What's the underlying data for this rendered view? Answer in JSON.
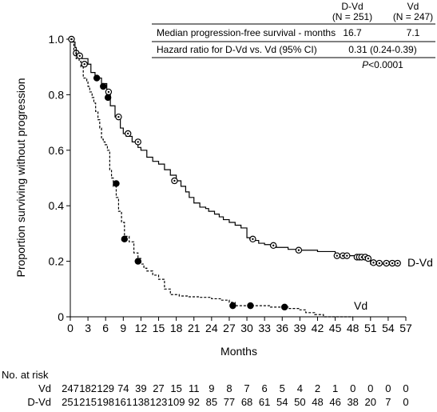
{
  "chart_data": {
    "type": "line",
    "xlabel": "Months",
    "ylabel": "Proportion surviving without progression",
    "xlim": [
      0,
      57
    ],
    "ylim": [
      0,
      1.0
    ],
    "x_ticks": [
      "0",
      "3",
      "6",
      "9",
      "12",
      "15",
      "18",
      "21",
      "24",
      "27",
      "30",
      "33",
      "36",
      "39",
      "42",
      "45",
      "48",
      "51",
      "54",
      "57"
    ],
    "y_ticks": [
      "0",
      "0.2",
      "0.4",
      "0.6",
      "0.8",
      "1.0"
    ],
    "grid": false,
    "series": [
      {
        "name": "D-Vd",
        "line_style": "solid",
        "marker": "open-circle",
        "end_label": "D-Vd",
        "points": [
          [
            0,
            1.0
          ],
          [
            0.4,
            0.99
          ],
          [
            0.8,
            0.97
          ],
          [
            1,
            0.95
          ],
          [
            1.5,
            0.94
          ],
          [
            2,
            0.93
          ],
          [
            3,
            0.91
          ],
          [
            3.5,
            0.88
          ],
          [
            4.2,
            0.87
          ],
          [
            4.6,
            0.86
          ],
          [
            5.3,
            0.84
          ],
          [
            6.2,
            0.81
          ],
          [
            6.8,
            0.76
          ],
          [
            7.6,
            0.72
          ],
          [
            8.5,
            0.68
          ],
          [
            9,
            0.66
          ],
          [
            9.5,
            0.65
          ],
          [
            10.5,
            0.63
          ],
          [
            11.5,
            0.61
          ],
          [
            12,
            0.6
          ],
          [
            13,
            0.575
          ],
          [
            14,
            0.56
          ],
          [
            15,
            0.55
          ],
          [
            16,
            0.53
          ],
          [
            17,
            0.51
          ],
          [
            18,
            0.49
          ],
          [
            18.8,
            0.47
          ],
          [
            19.6,
            0.45
          ],
          [
            20.2,
            0.43
          ],
          [
            21,
            0.41
          ],
          [
            22,
            0.395
          ],
          [
            23,
            0.39
          ],
          [
            23.5,
            0.38
          ],
          [
            24.5,
            0.37
          ],
          [
            25.3,
            0.36
          ],
          [
            26,
            0.35
          ],
          [
            27,
            0.34
          ],
          [
            28,
            0.33
          ],
          [
            29,
            0.32
          ],
          [
            30,
            0.285
          ],
          [
            30.5,
            0.28
          ],
          [
            31,
            0.275
          ],
          [
            32,
            0.265
          ],
          [
            33,
            0.26
          ],
          [
            34,
            0.255
          ],
          [
            35,
            0.25
          ],
          [
            37,
            0.243
          ],
          [
            38.5,
            0.24
          ],
          [
            42,
            0.235
          ],
          [
            45,
            0.225
          ],
          [
            47,
            0.22
          ],
          [
            49,
            0.21
          ],
          [
            50,
            0.205
          ],
          [
            51,
            0.19
          ],
          [
            54,
            0.19
          ],
          [
            55.5,
            0.19
          ]
        ],
        "censored": [
          [
            0.2,
            1.0
          ],
          [
            1,
            0.95
          ],
          [
            1.6,
            0.94
          ],
          [
            2.4,
            0.91
          ],
          [
            6.5,
            0.81
          ],
          [
            8.2,
            0.72
          ],
          [
            9.8,
            0.66
          ],
          [
            11.5,
            0.63
          ],
          [
            17.7,
            0.49
          ],
          [
            31,
            0.28
          ],
          [
            34.5,
            0.257
          ],
          [
            38.8,
            0.24
          ],
          [
            45.3,
            0.22
          ],
          [
            46.3,
            0.22
          ],
          [
            47,
            0.22
          ],
          [
            48.7,
            0.215
          ],
          [
            49.1,
            0.215
          ],
          [
            49.5,
            0.215
          ],
          [
            50.1,
            0.215
          ],
          [
            50.6,
            0.21
          ],
          [
            51.5,
            0.195
          ],
          [
            52.5,
            0.193
          ],
          [
            53.7,
            0.193
          ],
          [
            54.7,
            0.193
          ],
          [
            55.6,
            0.193
          ]
        ]
      },
      {
        "name": "Vd",
        "line_style": "dashed",
        "marker": "filled-circle",
        "end_label": "Vd",
        "points": [
          [
            0,
            1.0
          ],
          [
            0.3,
            0.99
          ],
          [
            0.6,
            0.96
          ],
          [
            1,
            0.93
          ],
          [
            1.5,
            0.92
          ],
          [
            1.8,
            0.9
          ],
          [
            2.2,
            0.86
          ],
          [
            2.8,
            0.85
          ],
          [
            3,
            0.83
          ],
          [
            3.3,
            0.81
          ],
          [
            3.7,
            0.79
          ],
          [
            4,
            0.77
          ],
          [
            4.3,
            0.74
          ],
          [
            4.7,
            0.71
          ],
          [
            5,
            0.68
          ],
          [
            5.3,
            0.64
          ],
          [
            5.6,
            0.63
          ],
          [
            5.9,
            0.62
          ],
          [
            6.3,
            0.6
          ],
          [
            6.7,
            0.53
          ],
          [
            7,
            0.5
          ],
          [
            7.3,
            0.47
          ],
          [
            7.8,
            0.43
          ],
          [
            8.2,
            0.38
          ],
          [
            8.7,
            0.34
          ],
          [
            9.2,
            0.29
          ],
          [
            10,
            0.27
          ],
          [
            10.8,
            0.23
          ],
          [
            11.5,
            0.21
          ],
          [
            12,
            0.19
          ],
          [
            12.5,
            0.175
          ],
          [
            13,
            0.165
          ],
          [
            14,
            0.15
          ],
          [
            15,
            0.135
          ],
          [
            16,
            0.1
          ],
          [
            17,
            0.08
          ],
          [
            18.5,
            0.075
          ],
          [
            20,
            0.072
          ],
          [
            22,
            0.07
          ],
          [
            24,
            0.065
          ],
          [
            25.5,
            0.06
          ],
          [
            27,
            0.052
          ],
          [
            28,
            0.04
          ],
          [
            31,
            0.04
          ],
          [
            34,
            0.035
          ],
          [
            37,
            0.03
          ],
          [
            39,
            0.025
          ],
          [
            40,
            0.015
          ],
          [
            41.5,
            0.008
          ],
          [
            43,
            0.0
          ],
          [
            48,
            0.0
          ]
        ],
        "censored": [
          [
            4.5,
            0.86
          ],
          [
            5.6,
            0.83
          ],
          [
            6.4,
            0.79
          ],
          [
            7.8,
            0.48
          ],
          [
            9.2,
            0.28
          ],
          [
            11.5,
            0.2
          ],
          [
            27.6,
            0.04
          ],
          [
            30.6,
            0.04
          ],
          [
            36.4,
            0.035
          ]
        ]
      }
    ],
    "table": {
      "columns": [
        "",
        "D-Vd\n(N = 251)",
        "Vd\n(N = 247)"
      ],
      "col_header_line1": [
        "D-Vd",
        "Vd"
      ],
      "col_header_line2": [
        "(N = 251)",
        "(N = 247)"
      ],
      "rows": [
        {
          "label": "Median progression-free survival - months",
          "dvd": "16.7",
          "vd": "7.1"
        },
        {
          "label": "Hazard ratio for D-Vd vs. Vd (95% CI)",
          "value": "0.31 (0.24-0.39)"
        }
      ],
      "p_value": {
        "italic": "P",
        "text": "<0.0001"
      }
    },
    "at_risk": {
      "title": "No. at risk",
      "rows": [
        {
          "label": "Vd",
          "values": [
            "247",
            "182",
            "129",
            "74",
            "39",
            "27",
            "15",
            "11",
            "9",
            "8",
            "7",
            "6",
            "5",
            "4",
            "2",
            "1",
            "0",
            "0",
            "0",
            "0"
          ]
        },
        {
          "label": "D-Vd",
          "values": [
            "251",
            "215",
            "198",
            "161",
            "138",
            "123",
            "109",
            "92",
            "85",
            "77",
            "68",
            "61",
            "54",
            "50",
            "48",
            "46",
            "38",
            "20",
            "7",
            "0"
          ]
        }
      ]
    }
  }
}
